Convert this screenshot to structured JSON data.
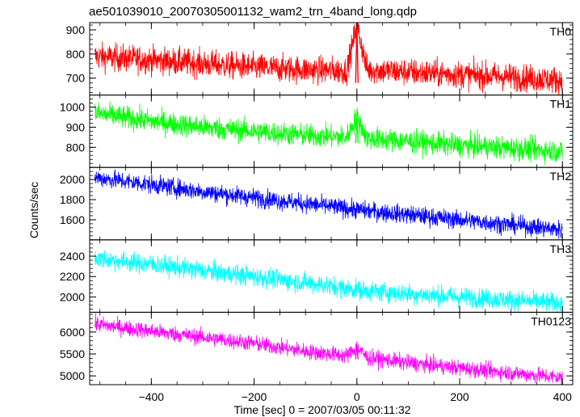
{
  "title": "ae501039010_20070305001132_wam2_trn_4band_long.qdp",
  "xlabel": "Time [sec] 0 = 2007/03/05 00:11:32",
  "ylabel": "Counts/sec",
  "chart_data": {
    "type": "line",
    "title": "ae501039010_20070305001132_wam2_trn_4band_long.qdp",
    "xlabel": "Time [sec] 0 = 2007/03/05 00:11:32",
    "ylabel": "Counts/sec",
    "xlim": [
      -520,
      420
    ],
    "x_ticks": [
      -400,
      -200,
      0,
      200,
      400
    ],
    "panels": [
      {
        "name": "TH0",
        "color": "#ff0000",
        "ylim": [
          630,
          930
        ],
        "y_ticks": [
          700,
          800,
          900
        ],
        "x": [
          -510,
          -400,
          -300,
          -200,
          -100,
          -20,
          0,
          20,
          100,
          200,
          300,
          400
        ],
        "y": [
          790,
          775,
          760,
          745,
          735,
          730,
          920,
          735,
          725,
          715,
          705,
          690
        ],
        "noise": 28,
        "spike": {
          "x": 0,
          "peak": 925,
          "low": 680
        }
      },
      {
        "name": "TH1",
        "color": "#00ff00",
        "ylim": [
          700,
          1060
        ],
        "y_ticks": [
          800,
          900,
          1000
        ],
        "x": [
          -510,
          -400,
          -300,
          -200,
          -100,
          -20,
          0,
          20,
          100,
          200,
          300,
          400
        ],
        "y": [
          970,
          930,
          900,
          880,
          860,
          850,
          950,
          845,
          830,
          810,
          795,
          780
        ],
        "noise": 28,
        "spike": {
          "x": 0,
          "peak": 960,
          "low": 820
        }
      },
      {
        "name": "TH2",
        "color": "#0000ff",
        "ylim": [
          1400,
          2120
        ],
        "y_ticks": [
          1600,
          1800,
          2000
        ],
        "x": [
          -510,
          -400,
          -300,
          -200,
          -100,
          0,
          100,
          200,
          300,
          400
        ],
        "y": [
          2020,
          1950,
          1880,
          1820,
          1760,
          1700,
          1650,
          1600,
          1550,
          1500
        ],
        "noise": 45
      },
      {
        "name": "TH3",
        "color": "#00ffff",
        "ylim": [
          1850,
          2560
        ],
        "y_ticks": [
          2000,
          2200,
          2400
        ],
        "x": [
          -510,
          -400,
          -300,
          -200,
          -100,
          0,
          100,
          200,
          300,
          400
        ],
        "y": [
          2380,
          2320,
          2260,
          2200,
          2140,
          2070,
          2030,
          2000,
          1970,
          1940
        ],
        "noise": 48
      },
      {
        "name": "TH0123",
        "color": "#ff00ff",
        "ylim": [
          4800,
          6450
        ],
        "y_ticks": [
          5000,
          5500,
          6000
        ],
        "x": [
          -510,
          -400,
          -300,
          -200,
          -100,
          -20,
          0,
          20,
          100,
          200,
          300,
          400
        ],
        "y": [
          6180,
          6020,
          5880,
          5740,
          5560,
          5460,
          5650,
          5420,
          5300,
          5180,
          5070,
          4960
        ],
        "noise": 90,
        "spike": {
          "x": 0,
          "peak": 5680,
          "low": 5380
        }
      }
    ]
  }
}
